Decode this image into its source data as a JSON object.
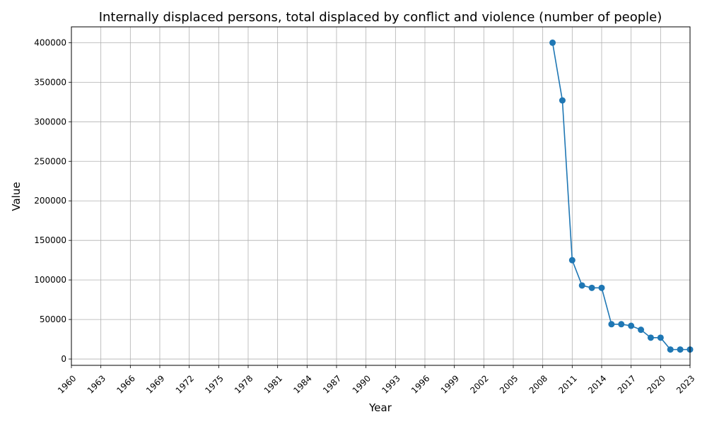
{
  "chart_data": {
    "type": "line",
    "title": "Internally displaced persons, total displaced by conflict and violence (number of people)",
    "xlabel": "Year",
    "ylabel": "Value",
    "xlim": [
      1960,
      2023
    ],
    "ylim": [
      -8000,
      420000
    ],
    "grid": true,
    "x_ticks": [
      1960,
      1963,
      1966,
      1969,
      1972,
      1975,
      1978,
      1981,
      1984,
      1987,
      1990,
      1993,
      1996,
      1999,
      2002,
      2005,
      2008,
      2011,
      2014,
      2017,
      2020,
      2023
    ],
    "y_ticks": [
      0,
      50000,
      100000,
      150000,
      200000,
      250000,
      300000,
      350000,
      400000
    ],
    "series": [
      {
        "color": "#1f77b4",
        "x": [
          2009,
          2010,
          2011,
          2012,
          2013,
          2014,
          2015,
          2016,
          2017,
          2018,
          2019,
          2020,
          2021,
          2022,
          2023
        ],
        "y": [
          400000,
          327000,
          125000,
          93000,
          90000,
          90000,
          44000,
          44000,
          42000,
          37000,
          27000,
          27000,
          12000,
          12000,
          12000
        ]
      }
    ]
  }
}
